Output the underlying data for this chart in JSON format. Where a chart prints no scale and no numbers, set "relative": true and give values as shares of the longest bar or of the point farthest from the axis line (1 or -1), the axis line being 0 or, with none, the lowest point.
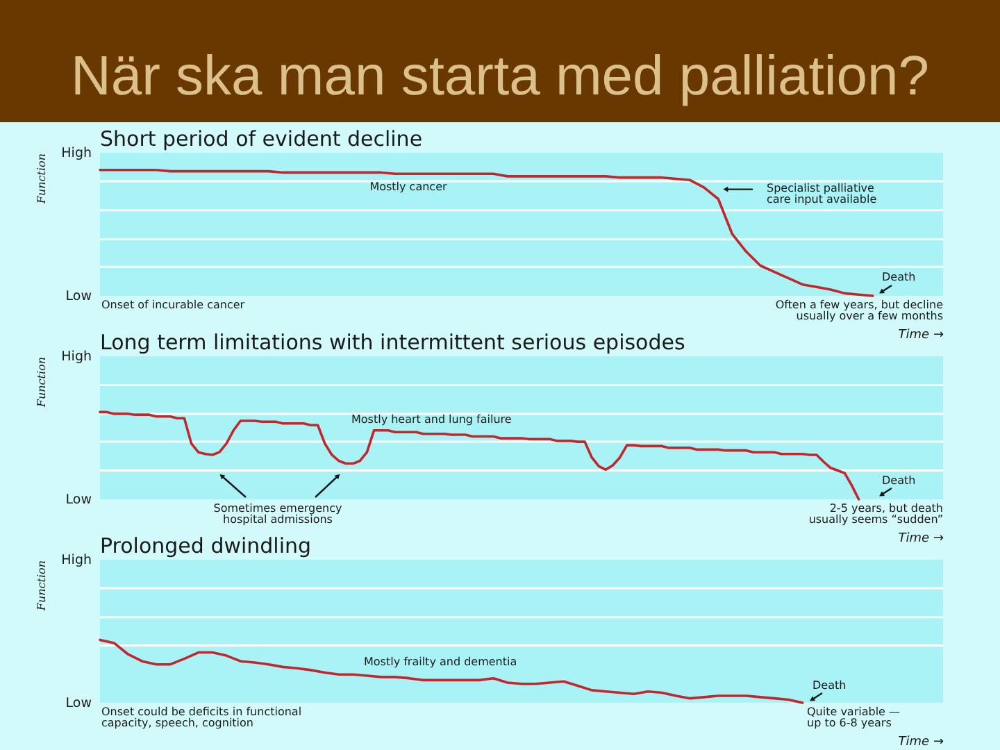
{
  "chart_data": [
    {
      "type": "other",
      "title": "När ska man starta med palliation?"
    },
    {
      "type": "line",
      "title": "Short period of evident decline",
      "xlabel": "Time →",
      "ylabel": "Function",
      "relative": true,
      "categories": [
        null,
        null,
        null,
        null,
        null,
        null,
        null,
        null,
        null,
        null,
        null,
        null,
        null,
        null,
        null,
        null,
        null,
        null,
        null,
        null,
        null,
        null,
        null,
        null,
        null,
        null,
        null,
        null,
        null,
        null,
        null,
        null,
        null,
        null,
        null,
        null,
        null,
        null,
        null,
        null,
        null,
        null,
        null,
        null,
        null,
        null,
        null,
        null,
        null,
        null,
        null,
        null,
        null,
        null,
        null,
        null,
        null,
        null,
        null,
        null,
        null
      ],
      "series": [
        {
          "color": "#c0282d",
          "values": [
            1.0,
            1.0,
            1.0,
            1.0,
            1.0,
            0.99,
            0.99,
            0.99,
            0.99,
            0.99,
            0.99,
            0.99,
            0.99,
            0.98,
            0.98,
            0.98,
            0.98,
            0.98,
            0.98,
            0.98,
            0.98,
            0.97,
            0.97,
            0.97,
            0.97,
            0.97,
            0.97,
            0.97,
            0.97,
            0.95,
            0.95,
            0.95,
            0.95,
            0.95,
            0.95,
            0.95,
            0.95,
            0.94,
            0.94,
            0.94,
            0.94,
            0.93,
            0.92,
            0.86,
            0.77,
            0.49,
            0.35,
            0.24,
            0.19,
            0.14,
            0.09,
            0.07,
            0.05,
            0.02,
            0.01,
            0.0,
            null,
            null,
            null,
            null,
            null
          ]
        }
      ],
      "ref_lines": [
        {
          "axis": "y",
          "value": 0.23,
          "color": "#ffffff"
        },
        {
          "axis": "y",
          "value": 0.45,
          "color": "#ffffff"
        },
        {
          "axis": "y",
          "value": 0.68,
          "color": "#ffffff"
        },
        {
          "axis": "y",
          "value": 0.91,
          "color": "#ffffff"
        }
      ],
      "annotations": [
        "High",
        "Low",
        "Mostly cancer",
        "Specialist palliative care input available",
        "Death",
        "Onset of incurable cancer",
        "Often a few years, but decline usually over a few months"
      ]
    },
    {
      "type": "line",
      "title": "Long term limitations with intermittent serious episodes",
      "xlabel": "Time →",
      "ylabel": "Function",
      "relative": true,
      "categories": [
        null,
        null,
        null,
        null,
        null,
        null,
        null,
        null,
        null,
        null,
        null,
        null,
        null,
        null,
        null,
        null,
        null,
        null,
        null,
        null,
        null,
        null,
        null,
        null,
        null,
        null,
        null,
        null,
        null,
        null,
        null,
        null,
        null,
        null,
        null,
        null,
        null,
        null,
        null,
        null,
        null,
        null,
        null,
        null,
        null,
        null,
        null,
        null,
        null,
        null,
        null,
        null,
        null,
        null,
        null,
        null,
        null,
        null,
        null,
        null,
        null,
        null,
        null,
        null,
        null,
        null,
        null,
        null,
        null,
        null,
        null,
        null,
        null,
        null,
        null,
        null,
        null,
        null,
        null,
        null,
        null,
        null,
        null,
        null,
        null,
        null,
        null,
        null,
        null,
        null,
        null,
        null,
        null,
        null,
        null,
        null,
        null,
        null,
        null,
        null,
        null,
        null,
        null,
        null,
        null,
        null,
        null,
        null,
        null,
        null,
        null,
        null,
        null,
        null,
        null,
        null,
        null,
        null,
        null,
        null,
        null
      ],
      "series": [
        {
          "color": "#c0282d",
          "values": [
            1.0,
            1.0,
            0.98,
            0.98,
            0.98,
            0.97,
            0.97,
            0.97,
            0.95,
            0.95,
            0.95,
            0.93,
            0.93,
            0.64,
            0.54,
            0.52,
            0.51,
            0.54,
            0.64,
            0.79,
            0.9,
            0.9,
            0.9,
            0.89,
            0.89,
            0.89,
            0.87,
            0.87,
            0.87,
            0.87,
            0.85,
            0.85,
            0.64,
            0.51,
            0.44,
            0.41,
            0.41,
            0.44,
            0.54,
            0.79,
            0.79,
            0.79,
            0.77,
            0.77,
            0.77,
            0.77,
            0.75,
            0.75,
            0.75,
            0.75,
            0.74,
            0.74,
            0.74,
            0.72,
            0.72,
            0.72,
            0.72,
            0.7,
            0.7,
            0.7,
            0.7,
            0.69,
            0.69,
            0.69,
            0.69,
            0.67,
            0.67,
            0.67,
            0.66,
            0.66,
            0.48,
            0.38,
            0.34,
            0.39,
            0.48,
            0.62,
            0.62,
            0.61,
            0.61,
            0.61,
            0.61,
            0.59,
            0.59,
            0.59,
            0.59,
            0.57,
            0.57,
            0.57,
            0.57,
            0.56,
            0.56,
            0.56,
            0.56,
            0.54,
            0.54,
            0.54,
            0.54,
            0.52,
            0.52,
            0.52,
            0.52,
            0.51,
            0.51,
            0.43,
            0.36,
            0.33,
            0.3,
            0.16,
            0.0,
            null,
            null,
            null,
            null,
            null,
            null,
            null,
            null,
            null,
            null,
            null,
            null
          ]
        }
      ],
      "ref_lines": [
        {
          "axis": "y",
          "value": 0.33,
          "color": "#ffffff"
        },
        {
          "axis": "y",
          "value": 0.66,
          "color": "#ffffff"
        },
        {
          "axis": "y",
          "value": 0.98,
          "color": "#ffffff"
        },
        {
          "axis": "y",
          "value": 1.31,
          "color": "#ffffff"
        }
      ],
      "annotations": [
        "High",
        "Low",
        "Mostly heart and lung failure",
        "Sometimes emergency hospital admissions",
        "Death",
        "2-5 years, but death usually seems “sudden”"
      ]
    },
    {
      "type": "line",
      "title": "Prolonged dwindling",
      "xlabel": "Time →",
      "ylabel": "Function",
      "relative": true,
      "categories": [
        null,
        null,
        null,
        null,
        null,
        null,
        null,
        null,
        null,
        null,
        null,
        null,
        null,
        null,
        null,
        null,
        null,
        null,
        null,
        null,
        null,
        null,
        null,
        null,
        null,
        null,
        null,
        null,
        null,
        null,
        null,
        null,
        null,
        null,
        null,
        null,
        null,
        null,
        null,
        null,
        null,
        null,
        null,
        null,
        null,
        null,
        null,
        null,
        null,
        null,
        null,
        null,
        null,
        null,
        null,
        null,
        null,
        null,
        null,
        null,
        null
      ],
      "series": [
        {
          "color": "#c0282d",
          "values": [
            1.0,
            0.95,
            0.77,
            0.66,
            0.61,
            0.61,
            0.7,
            0.8,
            0.8,
            0.75,
            0.66,
            0.64,
            0.61,
            0.57,
            0.55,
            0.52,
            0.48,
            0.45,
            0.45,
            0.43,
            0.41,
            0.41,
            0.39,
            0.36,
            0.36,
            0.36,
            0.36,
            0.36,
            0.39,
            0.32,
            0.3,
            0.3,
            0.32,
            0.34,
            0.27,
            0.2,
            0.18,
            0.16,
            0.14,
            0.18,
            0.16,
            0.11,
            0.07,
            0.09,
            0.11,
            0.11,
            0.11,
            0.09,
            0.07,
            0.05,
            0.0,
            null,
            null,
            null,
            null,
            null,
            null,
            null,
            null,
            null,
            null
          ]
        }
      ],
      "ref_lines": [
        {
          "axis": "y",
          "value": 0.91,
          "color": "#ffffff"
        },
        {
          "axis": "y",
          "value": 1.36,
          "color": "#ffffff"
        },
        {
          "axis": "y",
          "value": 1.82,
          "color": "#ffffff"
        }
      ],
      "annotations": [
        "High",
        "Low",
        "Mostly frailty and dementia",
        "Onset could be deficits in functional capacity, speech, cognition",
        "Death",
        "Quite variable — up to 6-8 years"
      ]
    }
  ]
}
